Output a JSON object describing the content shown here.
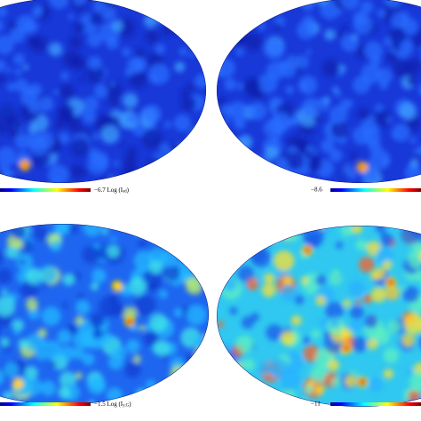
{
  "colorbars": [
    {
      "min_label": "−6.7",
      "quantity": "Log (I",
      "subscript": "sd",
      "close": ")"
    },
    {
      "min_label": "−8.6"
    },
    {
      "min_label": "−1.5",
      "quantity": "Log (I",
      "subscript": "y,G",
      "close": ")"
    },
    {
      "min_label": "−11"
    }
  ]
}
